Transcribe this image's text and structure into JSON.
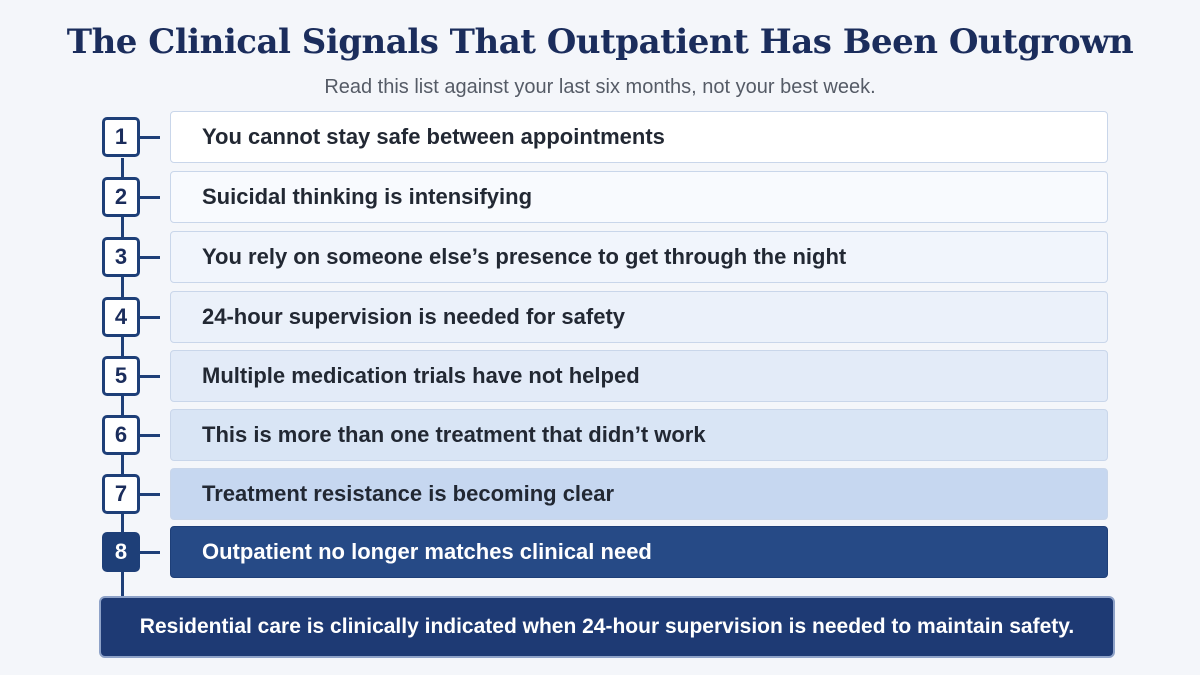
{
  "header": {
    "title": "The Clinical Signals That Outpatient Has Been Outgrown",
    "subtitle": "Read this list against your last six months, not your best week."
  },
  "signals": [
    {
      "number": "1",
      "text": "You cannot stay safe between appointments",
      "fill": "#ffffff",
      "active": false
    },
    {
      "number": "2",
      "text": "Suicidal thinking is intensifying",
      "fill": "#f8fafe",
      "active": false
    },
    {
      "number": "3",
      "text": "You rely on someone else’s presence to get through the night",
      "fill": "#f1f5fc",
      "active": false
    },
    {
      "number": "4",
      "text": "24-hour supervision is needed for safety",
      "fill": "#ebf1fa",
      "active": false
    },
    {
      "number": "5",
      "text": "Multiple medication trials have not helped",
      "fill": "#e3ebf8",
      "active": false
    },
    {
      "number": "6",
      "text": "This is more than one treatment that didn’t work",
      "fill": "#d9e5f5",
      "active": false
    },
    {
      "number": "7",
      "text": "Treatment resistance is becoming clear",
      "fill": "#c6d7f0",
      "active": false
    },
    {
      "number": "8",
      "text": "Outpatient no longer matches clinical need",
      "fill": "#264a86",
      "active": true
    }
  ],
  "summary": {
    "text": "Residential care is clinically indicated when 24-hour supervision is needed to maintain safety."
  },
  "colors": {
    "navy": "#1e3f78",
    "title": "#1b2d5c",
    "background": "#f4f6fa"
  }
}
